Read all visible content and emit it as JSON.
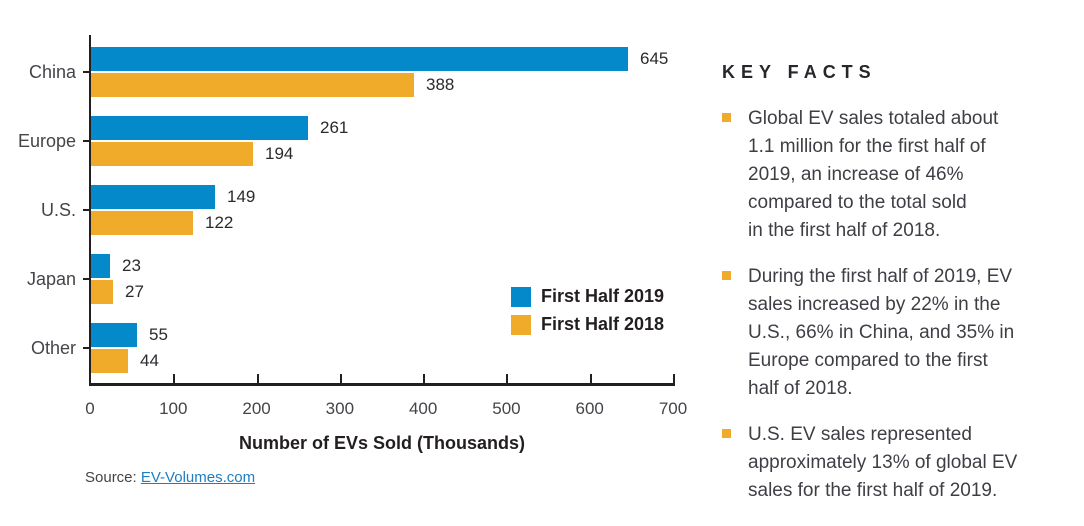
{
  "chart_data": {
    "type": "bar",
    "orientation": "horizontal",
    "title": "",
    "xlabel": "Number of EVs Sold (Thousands)",
    "ylabel": "",
    "xlim": [
      0,
      700
    ],
    "xticks": [
      0,
      100,
      200,
      300,
      400,
      500,
      600,
      700
    ],
    "grid": false,
    "legend_position": "inside-lower-right",
    "categories": [
      "China",
      "Europe",
      "U.S.",
      "Japan",
      "Other"
    ],
    "series": [
      {
        "name": "First Half 2019",
        "color": "#048aca",
        "values": [
          645,
          261,
          149,
          23,
          55
        ]
      },
      {
        "name": "First Half 2018",
        "color": "#f1ab2b",
        "values": [
          388,
          194,
          122,
          27,
          44
        ]
      }
    ]
  },
  "source": {
    "prefix": "Source: ",
    "link_text": "EV-Volumes.com"
  },
  "key_facts": {
    "title": "KEY FACTS",
    "bullet_color": "#f1ab2b",
    "bullets": [
      {
        "text": "Global EV sales totaled about\n1.1 million for the first half of\n2019, an increase of 46%\ncompared to the total sold\nin the first half of 2018."
      },
      {
        "text": "During the first half of 2019, EV\nsales increased by 22% in the\nU.S., 66% in China, and 35% in\nEurope compared to the first\nhalf of 2018."
      },
      {
        "text": "U.S. EV sales represented\napproximately 13% of global EV\nsales for the first half of 2019."
      }
    ]
  },
  "colors": {
    "axis": "#231f20",
    "text_dark": "#231f20",
    "text_body": "#3f3e45",
    "link_blue": "#1e7ec2"
  }
}
